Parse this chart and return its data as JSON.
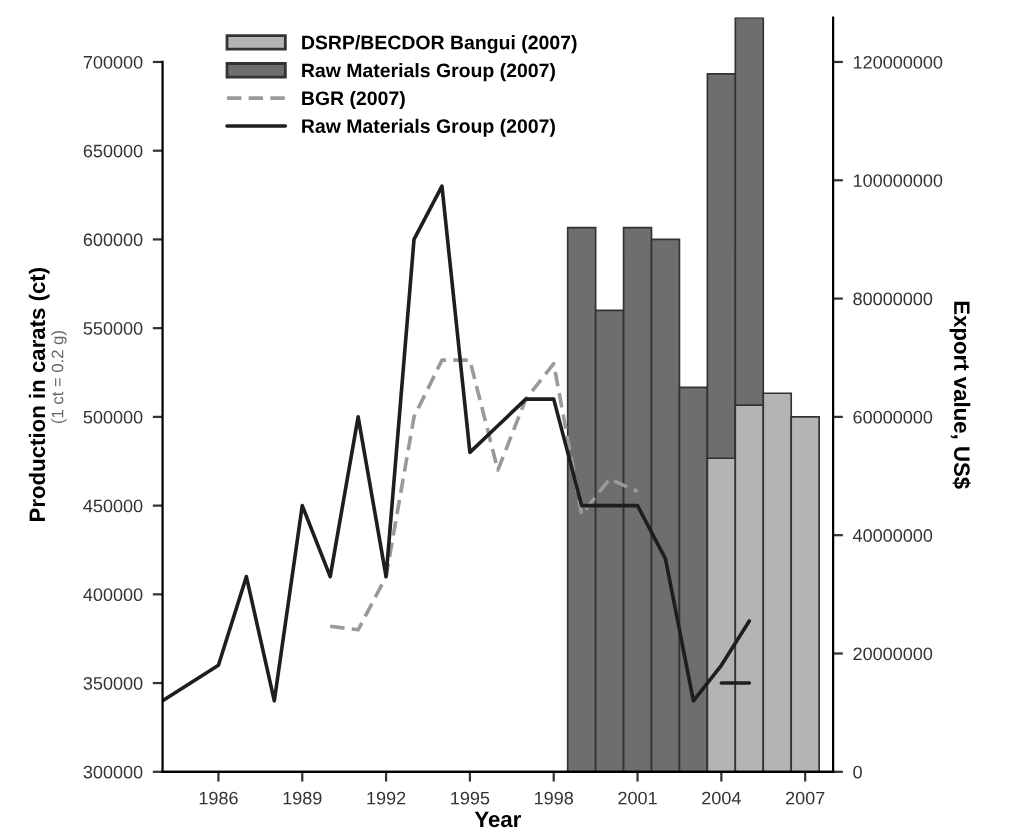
{
  "chart_data": {
    "type": "line",
    "xlabel": "Year",
    "ylabel": "Production in carats (ct)",
    "y2label": "Export value, US$",
    "annotations": [
      "(1 ct = 0.2 g)"
    ],
    "xlim": [
      1984,
      2008
    ],
    "xticks": [
      1986,
      1989,
      1992,
      1995,
      1998,
      2001,
      2004,
      2007
    ],
    "ylim": [
      300000,
      725000
    ],
    "yticks": [
      300000,
      350000,
      400000,
      450000,
      500000,
      550000,
      600000,
      650000,
      700000
    ],
    "y2lim": [
      0,
      127500000
    ],
    "y2ticks": [
      0,
      20000000,
      40000000,
      60000000,
      80000000,
      100000000,
      120000000
    ],
    "grid": false,
    "legend": "top left",
    "marker": "none",
    "series": [
      {
        "name": "Raw Materials Group (2007)",
        "type": "bar",
        "axis": "y2",
        "color": "#6e6e6e",
        "x": [
          1999,
          2000,
          2001,
          2002,
          2003,
          2004,
          2005
        ],
        "values": [
          92000000,
          78000000,
          92000000,
          90000000,
          65000000,
          118000000,
          127500000
        ]
      },
      {
        "name": "DSRP/BECDOR Bangui (2007)",
        "type": "bar",
        "axis": "y2",
        "color": "#b4b4b4",
        "x": [
          2004,
          2005,
          2006,
          2007
        ],
        "values": [
          53000000,
          62000000,
          64000000,
          60000000
        ]
      },
      {
        "name": "BGR (2007)",
        "line_style": "dashed",
        "color": "#9a9a9a",
        "x": [
          1990,
          1991,
          1992,
          1993,
          1994,
          1995,
          1996,
          1997,
          1998,
          1999,
          2000,
          2001
        ],
        "values": [
          382000,
          380000,
          410000,
          500000,
          532000,
          532000,
          470000,
          510000,
          530000,
          445000,
          465000,
          458000
        ]
      },
      {
        "name": "Raw Materials Group (2007)",
        "line_style": "solid",
        "color": "#1e1e1e",
        "x": [
          1984,
          1986,
          1987,
          1988,
          1989,
          1990,
          1991,
          1992,
          1993,
          1994,
          1995,
          1996,
          1997,
          1998,
          1999,
          2000,
          2001,
          2002,
          2003,
          2004,
          2005
        ],
        "values": [
          340000,
          360000,
          410000,
          340000,
          450000,
          410000,
          500000,
          410000,
          600000,
          630000,
          480000,
          495000,
          510000,
          510000,
          450000,
          450000,
          450000,
          420000,
          340000,
          360000,
          385000
        ]
      },
      {
        "line_style": "solid",
        "color": "#1e1e1e",
        "x": [
          2004,
          2005
        ],
        "values": [
          350000,
          350000
        ]
      }
    ]
  }
}
